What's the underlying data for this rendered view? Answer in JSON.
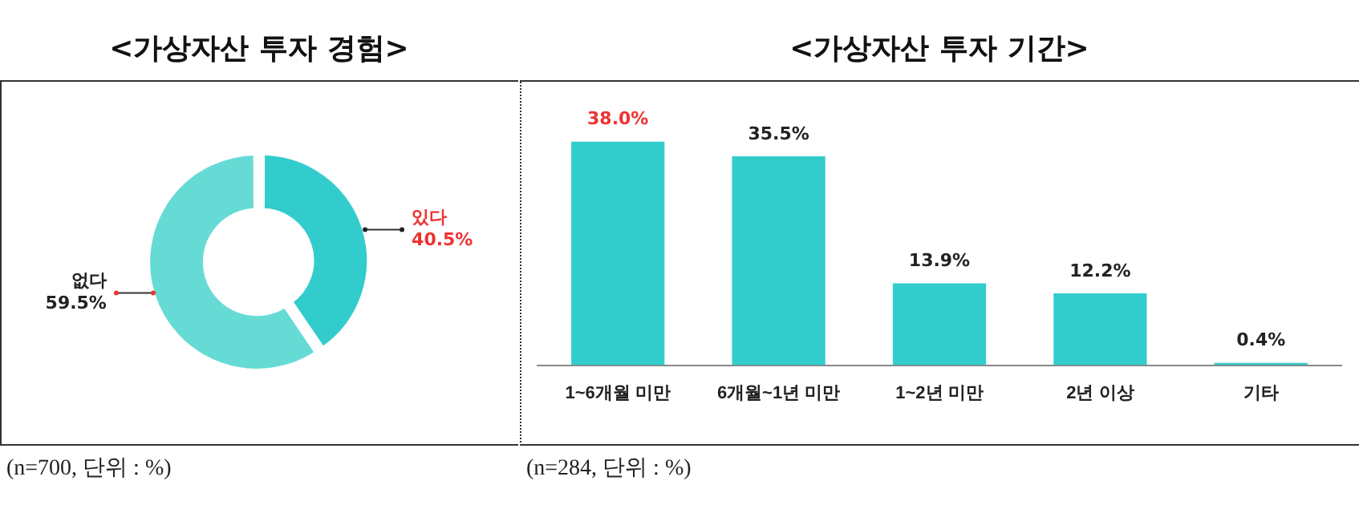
{
  "chart_data": [
    {
      "type": "donut",
      "title": "<가상자산 투자 경험>",
      "categories": [
        "있다",
        "없다"
      ],
      "values": [
        40.5,
        59.5
      ],
      "colors": [
        "#33cccc",
        "#66dbd6"
      ],
      "value_labels": [
        "40.5%",
        "59.5%"
      ],
      "legend": false,
      "annotations": [
        "(n=700, 단위 : %)"
      ]
    },
    {
      "type": "bar",
      "title": "<가상자산 투자 기간>",
      "categories": [
        "1~6개월 미만",
        "6개월~1년 미만",
        "1~2년 미만",
        "2년 이상",
        "기타"
      ],
      "values": [
        38.0,
        35.5,
        13.9,
        12.2,
        0.4
      ],
      "color": "#33cccc",
      "value_labels": [
        "38.0%",
        "35.5%",
        "13.9%",
        "12.2%",
        "0.4%"
      ],
      "legend": false,
      "annotations": [
        "(n=284, 단위 : %)"
      ]
    }
  ]
}
